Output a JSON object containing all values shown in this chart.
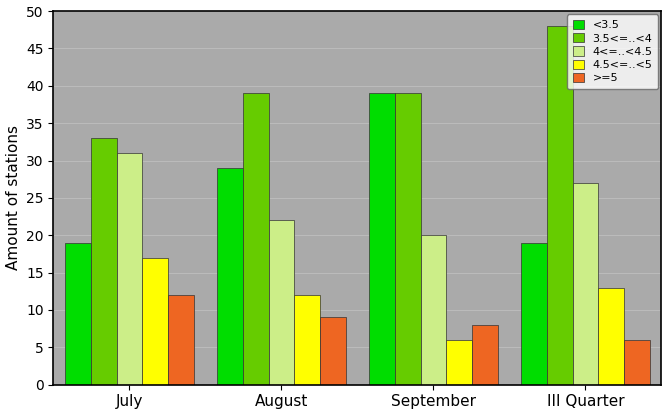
{
  "categories": [
    "July",
    "August",
    "September",
    "III Quarter"
  ],
  "series": [
    {
      "label": "<3.5",
      "values": [
        19,
        29,
        39,
        19
      ],
      "color": "#00dd00"
    },
    {
      "label": "3.5<=..<4",
      "values": [
        33,
        39,
        39,
        48
      ],
      "color": "#66cc00"
    },
    {
      "label": "4<=..<4.5",
      "values": [
        31,
        22,
        20,
        27
      ],
      "color": "#ccee88"
    },
    {
      "label": "4.5<=..<5",
      "values": [
        17,
        12,
        6,
        13
      ],
      "color": "#ffff00"
    },
    {
      "label": ">=5",
      "values": [
        12,
        9,
        8,
        6
      ],
      "color": "#ee6622"
    }
  ],
  "ylabel": "Amount of stations",
  "ylim": [
    0,
    50
  ],
  "yticks": [
    0,
    5,
    10,
    15,
    20,
    25,
    30,
    35,
    40,
    45,
    50
  ],
  "plot_bg_color": "#aaaaaa",
  "fig_bg_color": "#ffffff",
  "bar_edge_color": "#333333",
  "grid_color": "#bbbbbb",
  "bar_width": 0.17,
  "legend_loc": "upper right"
}
